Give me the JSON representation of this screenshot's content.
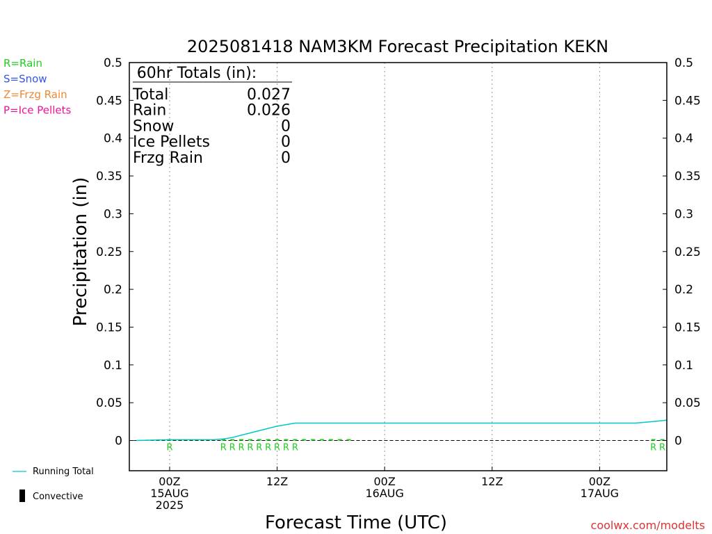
{
  "chart_data": {
    "type": "line",
    "title": "2025081418 NAM3KM Forecast Precipitation KEKN",
    "xlabel": "Forecast Time (UTC)",
    "ylabel": "Precipitation (in)",
    "ylim": [
      -0.04,
      0.5
    ],
    "xlim_hours": [
      -4.5,
      55.5
    ],
    "y_ticks": [
      "0",
      "0.05",
      "0.1",
      "0.15",
      "0.2",
      "0.25",
      "0.3",
      "0.35",
      "0.4",
      "0.45",
      "0.5"
    ],
    "x_ticks": [
      {
        "hour": 0,
        "line1": "00Z",
        "line2": "15AUG",
        "line3": "2025"
      },
      {
        "hour": 12,
        "line1": "12Z",
        "line2": "",
        "line3": ""
      },
      {
        "hour": 24,
        "line1": "00Z",
        "line2": "16AUG",
        "line3": ""
      },
      {
        "hour": 36,
        "line1": "12Z",
        "line2": "",
        "line3": ""
      },
      {
        "hour": 48,
        "line1": "00Z",
        "line2": "17AUG",
        "line3": ""
      }
    ],
    "grid": "vertical dotted",
    "legend_placement": "left",
    "series": [
      {
        "name": "Running Total",
        "color": "#00c8c8",
        "x": [
          -5,
          0,
          5,
          6,
          7,
          8,
          9,
          10,
          11,
          12,
          13,
          14,
          15,
          20,
          30,
          40,
          50,
          51,
          52,
          53,
          54,
          55.5
        ],
        "values": [
          0,
          0.001,
          0.001,
          0.002,
          0.004,
          0.007,
          0.01,
          0.013,
          0.016,
          0.019,
          0.021,
          0.023,
          0.023,
          0.023,
          0.023,
          0.023,
          0.023,
          0.023,
          0.023,
          0.024,
          0.025,
          0.027
        ]
      }
    ],
    "precip_hours": [
      0,
      6,
      7,
      8,
      9,
      10,
      11,
      12,
      13,
      14,
      15,
      16,
      17,
      18,
      19,
      20,
      54,
      55
    ],
    "precip_type_markers": [
      {
        "hour": 0,
        "letter": "R"
      },
      {
        "hour": 6,
        "letter": "R"
      },
      {
        "hour": 7,
        "letter": "R"
      },
      {
        "hour": 8,
        "letter": "R"
      },
      {
        "hour": 9,
        "letter": "R"
      },
      {
        "hour": 10,
        "letter": "R"
      },
      {
        "hour": 11,
        "letter": "R"
      },
      {
        "hour": 12,
        "letter": "R"
      },
      {
        "hour": 13,
        "letter": "R"
      },
      {
        "hour": 14,
        "letter": "R"
      },
      {
        "hour": 54,
        "letter": "R"
      },
      {
        "hour": 55,
        "letter": "R"
      }
    ],
    "totals_box": {
      "title": "60hr Totals (in):",
      "rows": [
        {
          "label": "Total",
          "value": "0.027"
        },
        {
          "label": "Rain",
          "value": "0.026"
        },
        {
          "label": "Snow",
          "value": "0"
        },
        {
          "label": "Ice Pellets",
          "value": "0"
        },
        {
          "label": "Frzg Rain",
          "value": "0"
        }
      ]
    },
    "type_legend": [
      {
        "text": "R=Rain",
        "color": "#22cc22"
      },
      {
        "text": "S=Snow",
        "color": "#3355ee"
      },
      {
        "text": "Z=Frzg Rain",
        "color": "#ee8833"
      },
      {
        "text": "P=Ice Pellets",
        "color": "#ee1199"
      }
    ],
    "line_legend": {
      "running_total": "Running Total",
      "convective": "Convective"
    },
    "credit": "coolwx.com/modelts",
    "colors": {
      "running_total": "#00c8c8",
      "precip_bars": "#22cc22",
      "markers": "#22cc22",
      "credit": "#dd3333",
      "axis": "#000000"
    }
  }
}
